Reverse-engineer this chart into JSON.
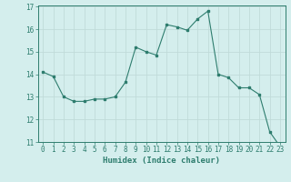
{
  "x": [
    0,
    1,
    2,
    3,
    4,
    5,
    6,
    7,
    8,
    9,
    10,
    11,
    12,
    13,
    14,
    15,
    16,
    17,
    18,
    19,
    20,
    21,
    22,
    23
  ],
  "y": [
    14.1,
    13.9,
    13.0,
    12.8,
    12.8,
    12.9,
    12.9,
    13.0,
    13.65,
    15.2,
    15.0,
    14.85,
    16.2,
    16.1,
    15.95,
    16.45,
    16.8,
    14.0,
    13.85,
    13.4,
    13.4,
    13.1,
    11.45,
    10.8
  ],
  "line_color": "#2e7d6e",
  "bg_color": "#d4eeed",
  "grid_color": "#c0dbd9",
  "xlabel": "Humidex (Indice chaleur)",
  "ylim": [
    11,
    17
  ],
  "xlim": [
    -0.5,
    23.5
  ],
  "yticks": [
    11,
    12,
    13,
    14,
    15,
    16,
    17
  ],
  "xticks": [
    0,
    1,
    2,
    3,
    4,
    5,
    6,
    7,
    8,
    9,
    10,
    11,
    12,
    13,
    14,
    15,
    16,
    17,
    18,
    19,
    20,
    21,
    22,
    23
  ],
  "tick_color": "#2e7d6e",
  "label_fontsize": 6.5,
  "tick_fontsize": 5.5
}
